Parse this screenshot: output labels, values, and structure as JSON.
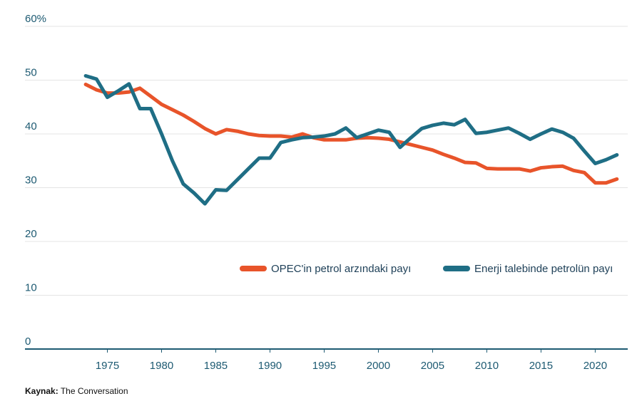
{
  "chart_data": {
    "type": "line",
    "x": [
      1973,
      1974,
      1975,
      1976,
      1977,
      1978,
      1979,
      1980,
      1981,
      1982,
      1983,
      1984,
      1985,
      1986,
      1987,
      1988,
      1989,
      1990,
      1991,
      1992,
      1993,
      1994,
      1995,
      1996,
      1997,
      1998,
      1999,
      2000,
      2001,
      2002,
      2003,
      2004,
      2005,
      2006,
      2007,
      2008,
      2009,
      2010,
      2011,
      2012,
      2013,
      2014,
      2015,
      2016,
      2017,
      2018,
      2019,
      2020,
      2021,
      2022
    ],
    "series": [
      {
        "name": "OPEC'in petrol arzındaki payı",
        "color": "#e8542a",
        "values": [
          49.2,
          48.2,
          47.6,
          47.6,
          47.8,
          48.5,
          47,
          45.5,
          44.5,
          43.5,
          42.3,
          41,
          40,
          40.8,
          40.5,
          40,
          39.7,
          39.6,
          39.6,
          39.4,
          40,
          39.3,
          38.9,
          38.9,
          38.9,
          39.2,
          39.3,
          39.2,
          39,
          38.5,
          38,
          37.5,
          37,
          36.2,
          35.5,
          34.7,
          34.6,
          33.6,
          33.5,
          33.5,
          33.5,
          33.1,
          33.7,
          33.9,
          34,
          33.2,
          32.8,
          30.9,
          30.9,
          31.6
        ]
      },
      {
        "name": "Enerji talebinde petrolün payı",
        "color": "#1f6e85",
        "values": [
          50.8,
          50.2,
          46.8,
          48,
          49.3,
          44.7,
          44.7,
          40,
          35,
          30.7,
          29,
          27,
          29.6,
          29.5,
          31.5,
          33.5,
          35.5,
          35.5,
          38.4,
          38.9,
          39.3,
          39.4,
          39.6,
          40,
          41.1,
          39.3,
          40,
          40.7,
          40.3,
          37.5,
          39.3,
          41,
          41.6,
          42,
          41.7,
          42.7,
          40.1,
          40.3,
          40.7,
          41.1,
          40.1,
          39,
          40,
          40.9,
          40.3,
          39.2,
          36.8,
          34.5,
          35.2,
          36.1
        ]
      }
    ],
    "xlim": [
      1967.4,
      2023
    ],
    "xticks": [
      1975,
      1980,
      1985,
      1990,
      1995,
      2000,
      2005,
      2010,
      2015,
      2020
    ],
    "ylim": [
      0,
      60
    ],
    "yticks": [
      0,
      10,
      20,
      30,
      40,
      50,
      {
        "value": 60,
        "label": "60%"
      }
    ],
    "grid": true,
    "source_label": "Kaynak:",
    "source": "The Conversation"
  }
}
